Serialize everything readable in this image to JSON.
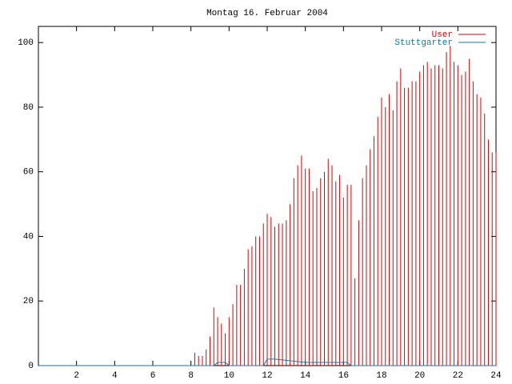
{
  "chart_data": {
    "type": "impulses",
    "title": "Montag 16. Februar 2004",
    "xlim": [
      0,
      24
    ],
    "xticks": [
      2,
      4,
      6,
      8,
      10,
      12,
      14,
      16,
      18,
      20,
      22,
      24
    ],
    "ylim": [
      0,
      105
    ],
    "yticks": [
      0,
      20,
      40,
      60,
      80,
      100
    ],
    "legend": "top-right",
    "series": [
      {
        "name": "User",
        "color": "#e00000",
        "style": "impulses",
        "x": [
          8.2,
          8.4,
          8.6,
          8.8,
          9,
          9.2,
          9.4,
          9.6,
          9.8,
          10,
          10.2,
          10.4,
          10.6,
          10.8,
          11,
          11.2,
          11.4,
          11.6,
          11.8,
          12,
          12.2,
          12.4,
          12.6,
          12.8,
          13,
          13.2,
          13.4,
          13.6,
          13.8,
          14,
          14.2,
          14.4,
          14.6,
          14.8,
          15,
          15.2,
          15.4,
          15.6,
          15.8,
          16,
          16.2,
          16.4,
          16.6,
          16.8,
          17,
          17.2,
          17.4,
          17.6,
          17.8,
          18,
          18.2,
          18.4,
          18.6,
          18.8,
          19,
          19.2,
          19.4,
          19.6,
          19.8,
          20,
          20.2,
          20.4,
          20.6,
          20.8,
          21,
          21.2,
          21.4,
          21.6,
          21.8,
          22,
          22.2,
          22.4,
          22.6,
          22.8,
          23,
          23.2,
          23.4,
          23.6,
          23.8,
          24
        ],
        "values": [
          4,
          3,
          3,
          5,
          9,
          18,
          15,
          13,
          10,
          15,
          19,
          25,
          25,
          30,
          36,
          37,
          40,
          40,
          44,
          47,
          46,
          43,
          44,
          44,
          45,
          50,
          58,
          62,
          65,
          61,
          61,
          54,
          55,
          58,
          60,
          64,
          62,
          57,
          59,
          52,
          56,
          56,
          27,
          45,
          58,
          62,
          67,
          71,
          77,
          83,
          80,
          84,
          79,
          88,
          92,
          86,
          86,
          88,
          88,
          91,
          93,
          94,
          92,
          93,
          93,
          92,
          97,
          99,
          94,
          93,
          90,
          91,
          95,
          88,
          84,
          83,
          78,
          70,
          66,
          66
        ]
      },
      {
        "name": "Stuttgarter",
        "color": "#0a7ab0",
        "style": "line",
        "x": [
          0,
          9.2,
          9.4,
          9.8,
          10,
          11.8,
          12,
          12.4,
          14,
          16.2,
          16.4,
          24
        ],
        "values": [
          0,
          0,
          1,
          1,
          0,
          0,
          2,
          2,
          1,
          1,
          0,
          0
        ]
      }
    ]
  }
}
